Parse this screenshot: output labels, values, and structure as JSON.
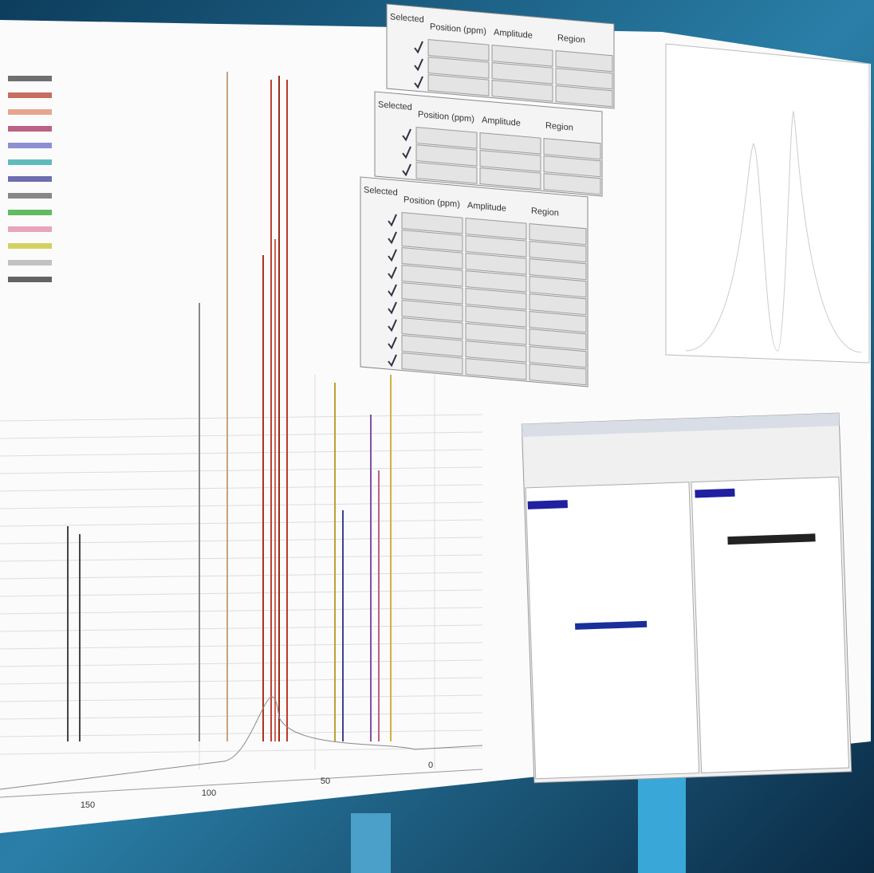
{
  "tables": [
    {
      "headers": [
        "Selected",
        "Position (ppm)",
        "Amplitude",
        "Region"
      ],
      "rows": 3
    },
    {
      "headers": [
        "Selected",
        "Position (ppm)",
        "Amplitude",
        "Region"
      ],
      "rows": 3
    },
    {
      "headers": [
        "Selected",
        "Position (ppm)",
        "Amplitude",
        "Region"
      ],
      "rows": 9
    }
  ],
  "axis_labels": [
    "150",
    "100",
    "50",
    "0"
  ]
}
